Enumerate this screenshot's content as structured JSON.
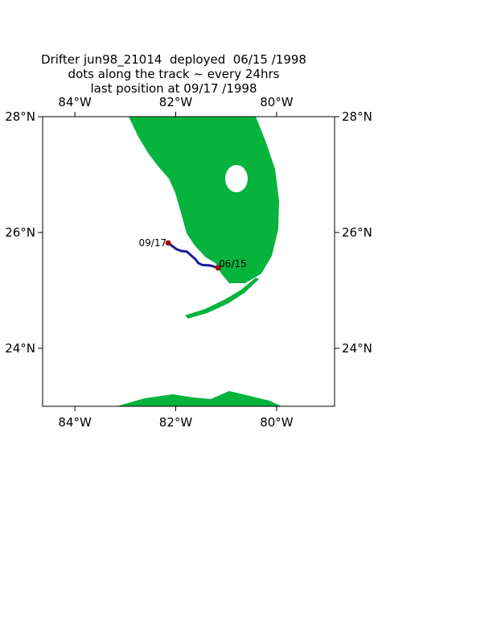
{
  "map": {
    "title_lines": [
      "Drifter jun98_21014  deployed  06/15 /1998",
      "dots along the track ~ every 24hrs",
      "last position at 09/17 /1998"
    ],
    "xlim": [
      -84.64,
      -78.85
    ],
    "ylim": [
      23,
      28
    ],
    "xticks": [
      {
        "value": -84,
        "label": "84°W"
      },
      {
        "value": -82,
        "label": "82°W"
      },
      {
        "value": -80,
        "label": "80°W"
      }
    ],
    "yticks": [
      {
        "value": 24,
        "label": "24°N"
      },
      {
        "value": 26,
        "label": "26°N"
      },
      {
        "value": 28,
        "label": "28°N"
      }
    ],
    "track": {
      "color": "#1a1aa0",
      "lon": [
        -81.16,
        -81.31,
        -81.47,
        -81.55,
        -81.61,
        -81.69,
        -81.78,
        -81.88,
        -81.98,
        -82.06,
        -82.15
      ],
      "lat": [
        25.39,
        25.43,
        25.44,
        25.47,
        25.54,
        25.6,
        25.67,
        25.68,
        25.71,
        25.76,
        25.82
      ]
    },
    "points": [
      {
        "label": "06/15",
        "lon": -81.16,
        "lat": 25.39,
        "color": "#a01010"
      },
      {
        "label": "09/17",
        "lon": -82.15,
        "lat": 25.82,
        "color": "#a01010"
      }
    ]
  }
}
